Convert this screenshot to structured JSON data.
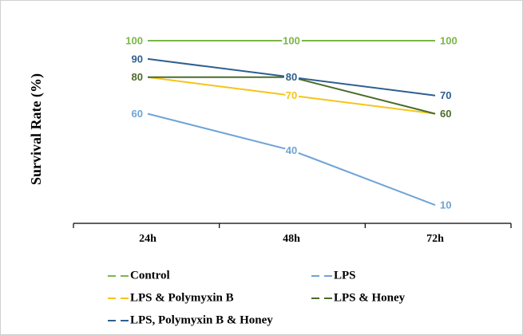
{
  "chart_data": {
    "type": "line",
    "y_label": "Survival Rate (%)",
    "categories": [
      "24h",
      "48h",
      "72h"
    ],
    "ylim": [
      0,
      100
    ],
    "series": [
      {
        "name": "Control",
        "color": "#7ab648",
        "values": [
          100,
          100,
          100
        ]
      },
      {
        "name": "LPS",
        "color": "#6fa3d6",
        "values": [
          60,
          40,
          10
        ]
      },
      {
        "name": "LPS & Polymyxin B",
        "color": "#f5c518",
        "values": [
          80,
          70,
          60
        ]
      },
      {
        "name": "LPS & Honey",
        "color": "#4d6b2a",
        "values": [
          80,
          80,
          60
        ]
      },
      {
        "name": "LPS, Polymyxin B & Honey",
        "color": "#2f5f8f",
        "values": [
          90,
          80,
          70
        ]
      }
    ]
  }
}
